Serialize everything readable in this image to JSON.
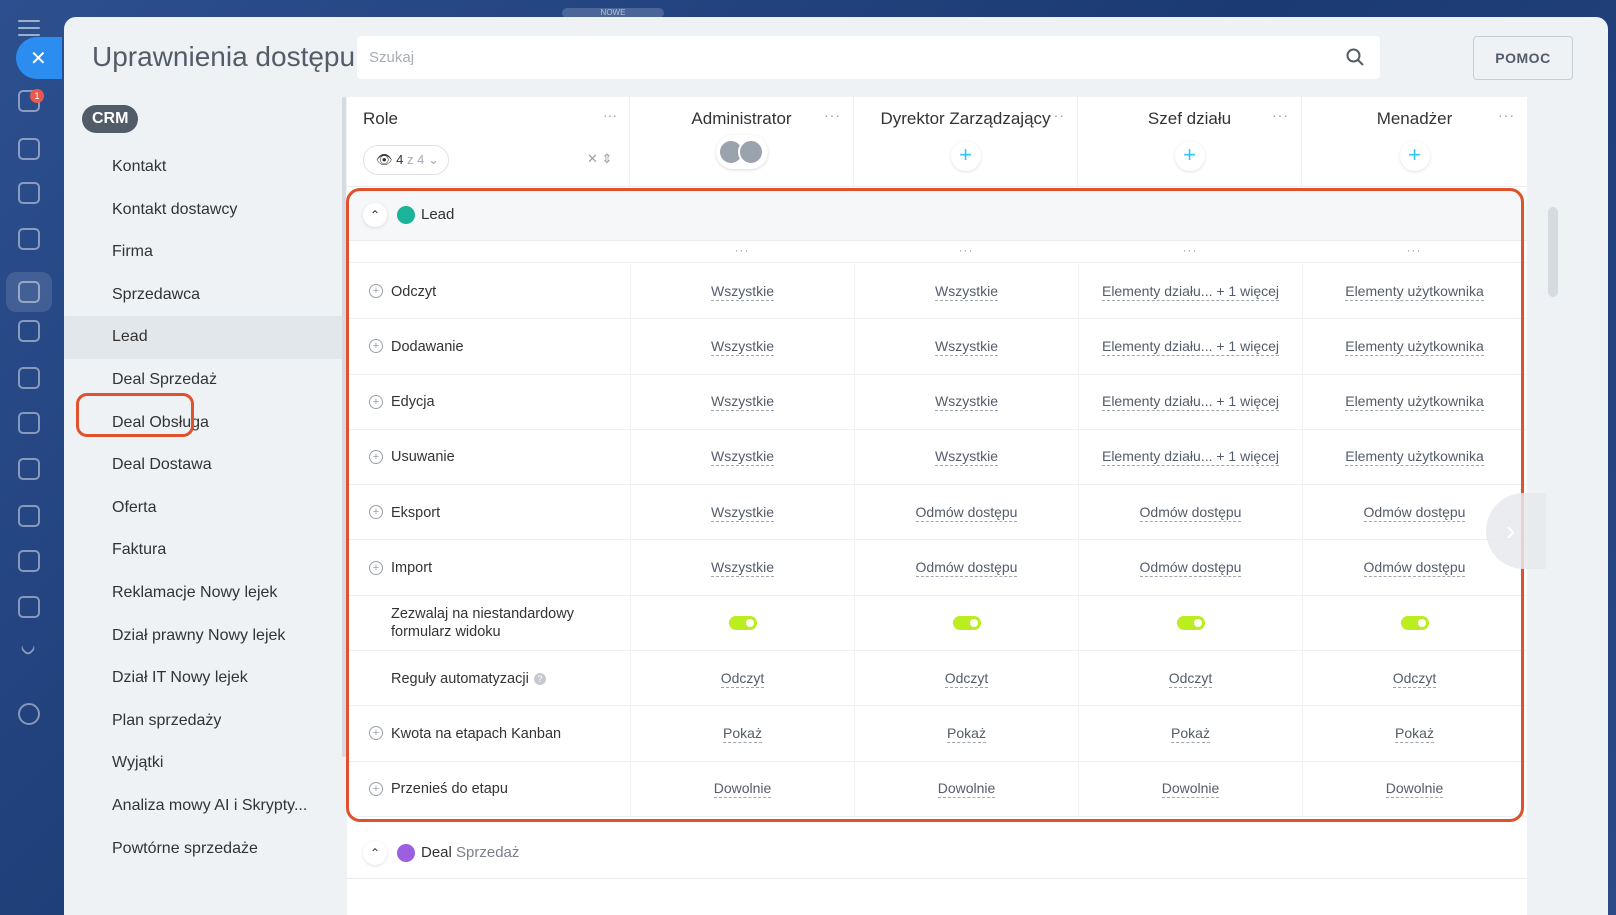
{
  "top_pill": "NOWE",
  "rail": {
    "badge_count": "1"
  },
  "header": {
    "title": "Uprawnienia dostępu",
    "search_placeholder": "Szukaj",
    "help_label": "POMOC"
  },
  "sidebar": {
    "badge": "CRM",
    "items": [
      {
        "label": "Kontakt"
      },
      {
        "label": "Kontakt dostawcy"
      },
      {
        "label": "Firma"
      },
      {
        "label": "Sprzedawca"
      },
      {
        "label": "Lead"
      },
      {
        "label": "Deal Sprzedaż"
      },
      {
        "label": "Deal Obsługa"
      },
      {
        "label": "Deal Dostawa"
      },
      {
        "label": "Oferta"
      },
      {
        "label": "Faktura"
      },
      {
        "label": "Reklamacje Nowy lejek"
      },
      {
        "label": "Dział prawny Nowy lejek"
      },
      {
        "label": "Dział IT Nowy lejek"
      },
      {
        "label": "Plan sprzedaży"
      },
      {
        "label": "Wyjątki"
      },
      {
        "label": "Analiza mowy AI i Skrypty..."
      },
      {
        "label": "Powtórne sprzedaże"
      }
    ]
  },
  "table": {
    "role_header": "Role",
    "role_filter": {
      "count": "4",
      "of": "z 4"
    },
    "columns": [
      {
        "name": "Administrator"
      },
      {
        "name": "Dyrektor Zarządzający"
      },
      {
        "name": "Szef działu"
      },
      {
        "name": "Menadżer"
      }
    ],
    "section_lead": {
      "label": "Lead"
    },
    "rows": [
      {
        "name": "Odczyt",
        "values": [
          "Wszystkie",
          "Wszystkie",
          "Elementy działu... + 1 więcej",
          "Elementy użytkownika"
        ]
      },
      {
        "name": "Dodawanie",
        "values": [
          "Wszystkie",
          "Wszystkie",
          "Elementy działu... + 1 więcej",
          "Elementy użytkownika"
        ]
      },
      {
        "name": "Edycja",
        "values": [
          "Wszystkie",
          "Wszystkie",
          "Elementy działu... + 1 więcej",
          "Elementy użytkownika"
        ]
      },
      {
        "name": "Usuwanie",
        "values": [
          "Wszystkie",
          "Wszystkie",
          "Elementy działu... + 1 więcej",
          "Elementy użytkownika"
        ]
      },
      {
        "name": "Eksport",
        "values": [
          "Wszystkie",
          "Odmów dostępu",
          "Odmów dostępu",
          "Odmów dostępu"
        ]
      },
      {
        "name": "Import",
        "values": [
          "Wszystkie",
          "Odmów dostępu",
          "Odmów dostępu",
          "Odmów dostępu"
        ]
      },
      {
        "name": "Zezwalaj na niestandardowy formularz widoku",
        "toggle": true
      },
      {
        "name": "Reguły automatyzacji",
        "values": [
          "Odczyt",
          "Odczyt",
          "Odczyt",
          "Odczyt"
        ]
      },
      {
        "name": "Kwota na etapach Kanban",
        "values": [
          "Pokaż",
          "Pokaż",
          "Pokaż",
          "Pokaż"
        ]
      },
      {
        "name": "Przenieś do etapu",
        "values": [
          "Dowolnie",
          "Dowolnie",
          "Dowolnie",
          "Dowolnie"
        ]
      }
    ],
    "section_deal": {
      "label_main": "Deal",
      "label_sub": "Sprzedaż"
    }
  },
  "colors": {
    "accent": "#2fc6f6",
    "highlight": "#e0522b",
    "toggle_on": "#bbed21",
    "lead_icon": "#1bb49a",
    "deal_icon": "#9b5fe0"
  }
}
